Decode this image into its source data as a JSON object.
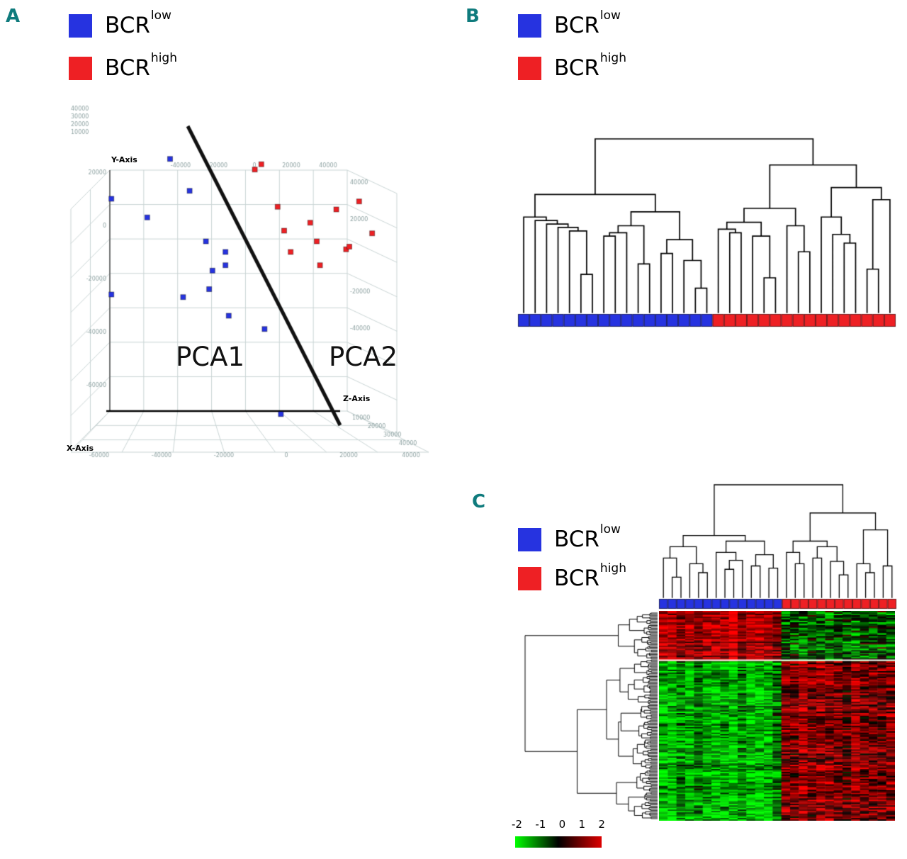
{
  "panels": {
    "a": {
      "label": "A",
      "pca1": "PCA1",
      "pca2": "PCA2",
      "x_axis": "X-Axis",
      "y_axis": "Y-Axis",
      "z_axis": "Z-Axis"
    },
    "b": {
      "label": "B"
    },
    "c": {
      "label": "C"
    }
  },
  "legend": {
    "low": {
      "base": "BCR",
      "sup": "low",
      "color": "#2633e0"
    },
    "high": {
      "base": "BCR",
      "sup": "high",
      "color": "#ee2024"
    }
  },
  "colorbar": {
    "labels": [
      "-2",
      "-1",
      "0",
      "1",
      "2"
    ],
    "gradient": [
      "#00ff00",
      "#000000",
      "#dd0000"
    ]
  },
  "chart_data": [
    {
      "type": "scatter",
      "panel": "A",
      "title": "3D PCA plot, BCR-low vs BCR-high samples",
      "x_label": "X-Axis",
      "y_label": "Y-Axis",
      "z_label": "Z-Axis",
      "xlim": [
        -65000,
        45000
      ],
      "ylim": [
        -75000,
        40000
      ],
      "axis_ticks": {
        "bottom": [
          "-60000",
          "-40000",
          "-20000",
          "0",
          "20000",
          "40000"
        ],
        "left": [
          "20000",
          "0",
          "-20000",
          "-40000",
          "-60000"
        ],
        "upper_left": [
          "40000",
          "30000",
          "20000",
          "10000"
        ],
        "right": [
          "40000",
          "20000",
          "-20000",
          "-40000"
        ],
        "top": [
          "-40000",
          "-20000",
          "0",
          "20000",
          "40000"
        ],
        "z": [
          "10000",
          "20000",
          "30000",
          "40000"
        ]
      },
      "series": [
        {
          "name": "BCR-low",
          "color": "#2633e0",
          "points": [
            [
              -30000,
              25000
            ],
            [
              -24000,
              13000
            ],
            [
              -48000,
              10000
            ],
            [
              -37000,
              3000
            ],
            [
              -19000,
              -6000
            ],
            [
              -13000,
              -10000
            ],
            [
              -17000,
              -17000
            ],
            [
              -13000,
              -15000
            ],
            [
              -18000,
              -24000
            ],
            [
              -48000,
              -26000
            ],
            [
              -26000,
              -27000
            ],
            [
              -12000,
              -34000
            ],
            [
              -1000,
              -39000
            ],
            [
              4000,
              -71000
            ]
          ]
        },
        {
          "name": "BCR-high",
          "color": "#ee2024",
          "points": [
            [
              -4000,
              21000
            ],
            [
              -2000,
              23000
            ],
            [
              3000,
              7000
            ],
            [
              21000,
              6000
            ],
            [
              28000,
              9000
            ],
            [
              5000,
              -2000
            ],
            [
              13000,
              1000
            ],
            [
              7000,
              -10000
            ],
            [
              15000,
              -6000
            ],
            [
              24000,
              -9000
            ],
            [
              25000,
              -8000
            ],
            [
              32000,
              -3000
            ],
            [
              16000,
              -15000
            ]
          ]
        }
      ],
      "separator": {
        "label_left": "PCA1",
        "label_right": "PCA2"
      }
    },
    {
      "type": "dendrogram",
      "panel": "B",
      "orientation": "top",
      "leaf_groups": [
        {
          "name": "BCR-low",
          "color": "#2633e0",
          "count": 17
        },
        {
          "name": "BCR-high",
          "color": "#ee2024",
          "count": 16
        }
      ],
      "tree": [
        1.0,
        [
          0.68,
          [
            0.55,
            0,
            [
              0.53,
              0,
              [
                0.51,
                0,
                [
                  0.49,
                  0,
                  [
                    0.47,
                    0,
                    [
                      0.22,
                      0,
                      0
                    ]
                  ]
                ]
              ]
            ]
          ],
          [
            0.58,
            [
              0.5,
              [
                0.46,
                [
                  0.44,
                  0,
                  0
                ],
                0
              ],
              [
                0.28,
                0,
                0
              ]
            ],
            [
              0.42,
              [
                0.34,
                0,
                0
              ],
              [
                0.3,
                0,
                [
                  0.14,
                  0,
                  0
                ]
              ]
            ]
          ]
        ],
        [
          0.85,
          [
            0.6,
            [
              0.52,
              [
                0.48,
                0,
                [
                  0.46,
                  0,
                  0
                ]
              ],
              [
                0.44,
                0,
                [
                  0.2,
                  0,
                  0
                ]
              ]
            ],
            [
              0.5,
              0,
              [
                0.35,
                0,
                0
              ]
            ]
          ],
          [
            0.72,
            [
              0.55,
              0,
              [
                0.45,
                0,
                [
                  0.4,
                  0,
                  0
                ]
              ]
            ],
            [
              0.65,
              [
                0.25,
                0,
                0
              ],
              0
            ]
          ]
        ]
      ]
    },
    {
      "type": "heatmap",
      "panel": "C",
      "col_leaf_groups": [
        {
          "name": "BCR-low",
          "color": "#2633e0",
          "count": 14
        },
        {
          "name": "BCR-high",
          "color": "#ee2024",
          "count": 13
        }
      ],
      "col_tree": [
        1.0,
        [
          0.55,
          [
            0.45,
            [
              0.35,
              0,
              [
                0.18,
                0,
                0
              ]
            ],
            [
              0.3,
              0,
              [
                0.22,
                0,
                0
              ]
            ]
          ],
          [
            0.5,
            [
              0.4,
              0,
              [
                0.33,
                [
                  0.25,
                  0,
                  0
                ],
                0
              ]
            ],
            [
              0.38,
              [
                0.28,
                0,
                0
              ],
              [
                0.26,
                0,
                0
              ]
            ]
          ]
        ],
        [
          0.75,
          [
            0.5,
            [
              0.4,
              0,
              [
                0.3,
                0,
                0
              ]
            ],
            [
              0.45,
              [
                0.35,
                0,
                0
              ],
              [
                0.32,
                0,
                [
                  0.2,
                  0,
                  0
                ]
              ]
            ]
          ],
          [
            0.6,
            [
              0.3,
              0,
              [
                0.22,
                0,
                0
              ]
            ],
            [
              0.28,
              0,
              0
            ]
          ]
        ]
      ],
      "row_dendrogram": {
        "leaves": 150,
        "seed": 11,
        "first_split": 34
      },
      "value_range": [
        -2,
        2
      ],
      "palette": {
        "low": "#00ff00",
        "mid": "#000000",
        "high": "#ff0000"
      },
      "expression_blocks": [
        {
          "rows": [
            0,
            0.235
          ],
          "cols": [
            0,
            14
          ],
          "mean": 1.3,
          "noise": 0.75
        },
        {
          "rows": [
            0,
            0.235
          ],
          "cols": [
            14,
            27
          ],
          "mean": -0.7,
          "noise": 1.1
        },
        {
          "rows": [
            0.235,
            1
          ],
          "cols": [
            0,
            14
          ],
          "mean": -1.25,
          "noise": 0.85
        },
        {
          "rows": [
            0.235,
            1
          ],
          "cols": [
            14,
            27
          ],
          "mean": 1.05,
          "noise": 0.9
        }
      ],
      "noise_seed": 5
    }
  ]
}
